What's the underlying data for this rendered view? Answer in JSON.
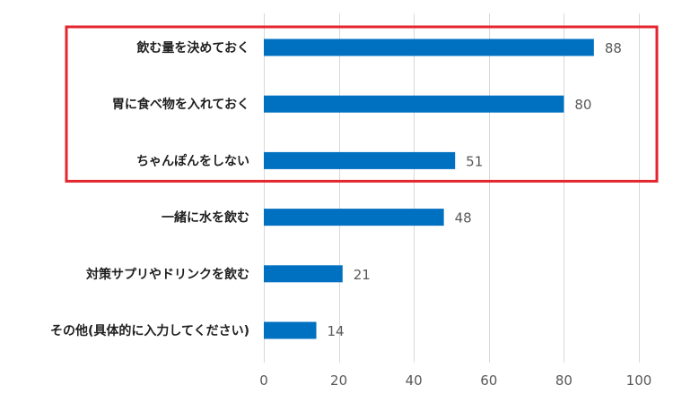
{
  "colors": {
    "bar": "#0070c0",
    "highlight_box": "#e3262d",
    "grid": "#d9d9d9",
    "value_text": "#595959",
    "category_text": "#1f1f1f"
  },
  "chart_data": {
    "type": "bar",
    "orientation": "horizontal",
    "categories": [
      "飲む量を決めておく",
      "胃に食べ物を入れておく",
      "ちゃんぽんをしない",
      "一緒に水を飲む",
      "対策サプリやドリンクを飲む",
      "その他(具体的に入力してください)"
    ],
    "values": [
      88,
      80,
      51,
      48,
      21,
      14
    ],
    "xlim": [
      0,
      100
    ],
    "xticks": [
      0,
      20,
      40,
      60,
      80,
      100
    ],
    "grid": true,
    "data_labels": true,
    "highlighted_categories": [
      0,
      1,
      2
    ],
    "title": "",
    "xlabel": "",
    "ylabel": ""
  }
}
